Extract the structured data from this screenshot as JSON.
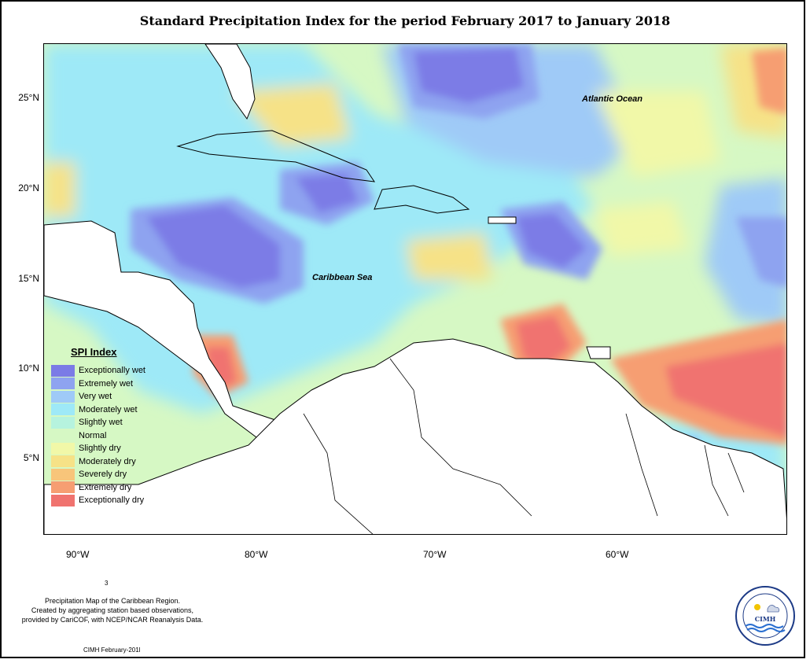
{
  "title": "Standard Precipitation Index for the period February 2017 to January 2018",
  "map": {
    "lat_labels": [
      "25°N",
      "20°N",
      "15°N",
      "10°N",
      "5°N"
    ],
    "lon_labels": [
      "90°W",
      "80°W",
      "70°W",
      "60°W"
    ],
    "places": {
      "atlantic": "Atlantic Ocean",
      "caribbean": "Caribbean Sea"
    }
  },
  "legend": {
    "title": "SPI Index",
    "items": [
      {
        "label": "Exceptionally wet",
        "color": "#7b7be6"
      },
      {
        "label": "Extremely wet",
        "color": "#8ea3f0"
      },
      {
        "label": "Very wet",
        "color": "#9fcaf7"
      },
      {
        "label": "Moderately wet",
        "color": "#9ee9f7"
      },
      {
        "label": "Slightly wet",
        "color": "#b6f3de"
      },
      {
        "label": "Normal",
        "color": "#d6f8c4"
      },
      {
        "label": "Slightly dry",
        "color": "#f1f8a8"
      },
      {
        "label": "Moderately dry",
        "color": "#f6e287"
      },
      {
        "label": "Severely dry",
        "color": "#f8c57a"
      },
      {
        "label": "Extremely dry",
        "color": "#f69e72"
      },
      {
        "label": "Exceptionally dry",
        "color": "#f0736f"
      }
    ]
  },
  "note": {
    "line1": "Precipitation Map of the Caribbean Region.",
    "line2": "Created by aggregating station based observations,",
    "line3": "provided by CariCOF, with NCEP/NCAR Reanalysis Data."
  },
  "credit": "CIMH February-201l",
  "stray_mark": "3",
  "logo": {
    "acronym": "CIMH"
  }
}
